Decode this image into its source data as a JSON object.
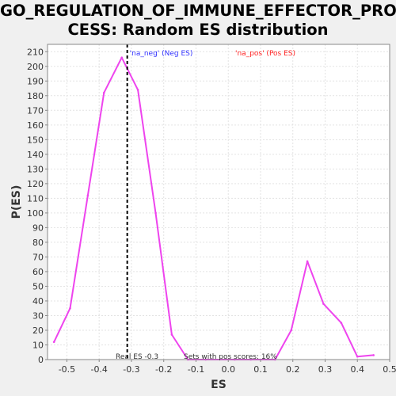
{
  "title_line1": "GO_REGULATION_OF_IMMUNE_EFFECTOR_PRO",
  "title_line2": "CESS: Random ES distribution",
  "colors": {
    "background": "#f0f0f0",
    "plot_bg": "#ffffff",
    "grid": "#e3e3e3",
    "curve": "#ee44ee",
    "real_es_line": "#000000",
    "legend_neg": "#3333ff",
    "legend_pos": "#ff2222"
  },
  "chart_data": {
    "type": "line",
    "title": "GO_REGULATION_OF_IMMUNE_EFFECTOR_PROCESS: Random ES distribution",
    "xlabel": "ES",
    "ylabel": "P(ES)",
    "xlim": [
      -0.56,
      0.5
    ],
    "ylim": [
      0,
      215
    ],
    "x_ticks": [
      -0.5,
      -0.4,
      -0.3,
      -0.2,
      -0.1,
      0.0,
      0.1,
      0.2,
      0.3,
      0.4,
      0.5
    ],
    "x_tick_labels": [
      "-0.5",
      "-0.4",
      "-0.3",
      "-0.2",
      "-0.1",
      "0.0",
      "0.1",
      "0.2",
      "0.3",
      "0.4",
      "0.5"
    ],
    "y_ticks": [
      0,
      10,
      20,
      30,
      40,
      50,
      60,
      70,
      80,
      90,
      100,
      110,
      120,
      130,
      140,
      150,
      160,
      170,
      180,
      190,
      200,
      210
    ],
    "y_tick_labels": [
      "0",
      "10",
      "20",
      "30",
      "40",
      "50",
      "60",
      "70",
      "80",
      "90",
      "100",
      "110",
      "120",
      "130",
      "140",
      "150",
      "160",
      "170",
      "180",
      "190",
      "200",
      "210"
    ],
    "grid": true,
    "series": [
      {
        "x": [
          -0.54,
          -0.49,
          -0.435,
          -0.385,
          -0.33,
          -0.28,
          -0.225,
          -0.175,
          -0.125,
          -0.07,
          0.02,
          0.07,
          0.145,
          0.195,
          0.245,
          0.295,
          0.35,
          0.4,
          0.45
        ],
        "y": [
          12,
          35,
          112,
          182,
          206,
          184,
          100,
          17,
          0,
          0,
          0,
          0,
          0,
          20,
          67,
          38,
          25,
          2,
          3
        ]
      }
    ],
    "real_es": -0.313,
    "legend": [
      {
        "label": "'na_neg' (Neg ES)",
        "color": "#3333ff"
      },
      {
        "label": "'na_pos' (Pos ES)",
        "color": "#ff2222"
      }
    ],
    "annotations": {
      "real_es": "Real ES -0.3",
      "pos_scores": "Sets with pos scores: 16%"
    }
  }
}
